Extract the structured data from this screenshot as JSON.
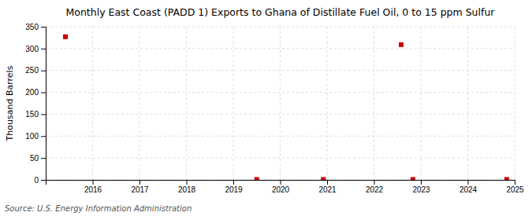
{
  "chart_data": {
    "type": "scatter",
    "title": "Monthly East Coast (PADD 1) Exports to Ghana of Distillate Fuel Oil, 0 to 15 ppm Sulfur",
    "ylabel": "Thousand Barrels",
    "source": "Source: U.S. Energy Information Administration",
    "x": [
      2015.42,
      2019.5,
      2020.92,
      2022.58,
      2022.83,
      2024.83
    ],
    "values": [
      327,
      1,
      1,
      309,
      1,
      1
    ],
    "color": "#cc0000",
    "marker": "square",
    "xlim": [
      2015,
      2025
    ],
    "ylim": [
      0,
      350
    ],
    "xticks": [
      2016,
      2017,
      2018,
      2019,
      2020,
      2021,
      2022,
      2023,
      2024,
      2025
    ],
    "yticks": [
      0,
      50,
      100,
      150,
      200,
      250,
      300,
      350
    ],
    "grid": true
  }
}
